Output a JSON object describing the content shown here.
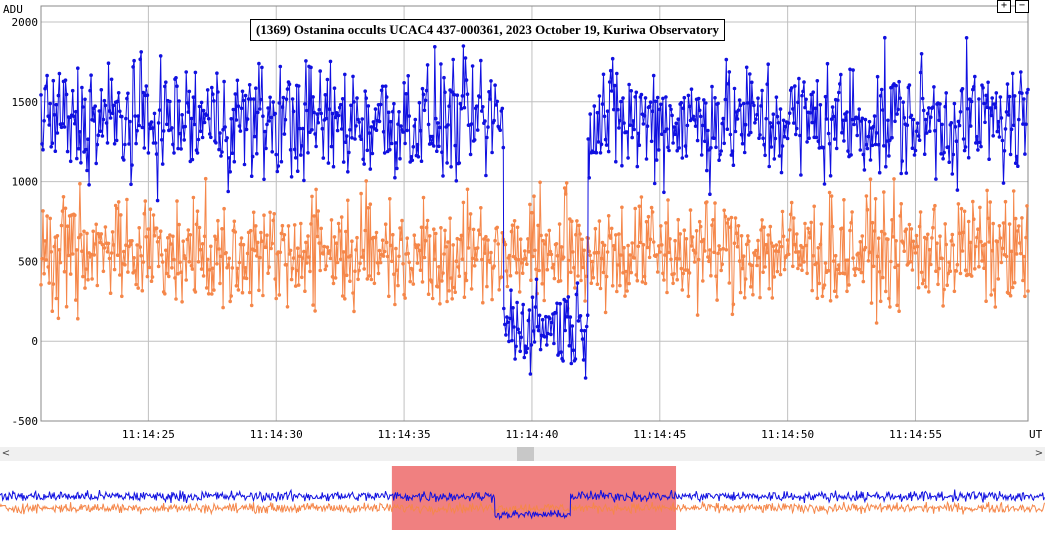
{
  "title": "(1369) Ostanina occults UCAC4 437-000361, 2023 October 19, Kuriwa Observatory",
  "controls": {
    "zoom_in": "+",
    "zoom_out": "−",
    "scroll_left": "<",
    "scroll_right": ">"
  },
  "colors": {
    "target": "#1010e0",
    "comparison": "#f5874a",
    "grid": "#c0c0c0",
    "selection": "#f08080"
  },
  "chart_data": {
    "type": "line",
    "ylabel": "ADU",
    "xlabel": "UT",
    "ylim": [
      -500,
      2100
    ],
    "yticks": [
      -500,
      0,
      500,
      1000,
      1500,
      2000
    ],
    "xlim_seconds": [
      20.8,
      59.4
    ],
    "xticks": [
      {
        "label": "11:14:25",
        "t": 25
      },
      {
        "label": "11:14:30",
        "t": 30
      },
      {
        "label": "11:14:35",
        "t": 35
      },
      {
        "label": "11:14:40",
        "t": 40
      },
      {
        "label": "11:14:45",
        "t": 45
      },
      {
        "label": "11:14:50",
        "t": 50
      },
      {
        "label": "11:14:55",
        "t": 55
      }
    ],
    "grid": true,
    "series": [
      {
        "role": "target",
        "color": "#1010e0",
        "segments": [
          {
            "t_start": 20.8,
            "t_end": 38.9,
            "mean": 1380,
            "noise": 180
          },
          {
            "t_start": 38.9,
            "t_end": 42.2,
            "mean": 100,
            "noise": 130
          },
          {
            "t_start": 42.2,
            "t_end": 59.4,
            "mean": 1380,
            "noise": 180
          }
        ]
      },
      {
        "role": "comparison",
        "color": "#f5874a",
        "segments": [
          {
            "t_start": 20.8,
            "t_end": 59.4,
            "mean": 560,
            "noise": 170
          }
        ]
      }
    ],
    "overview_selection_seconds": [
      34.4,
      46.8
    ]
  }
}
